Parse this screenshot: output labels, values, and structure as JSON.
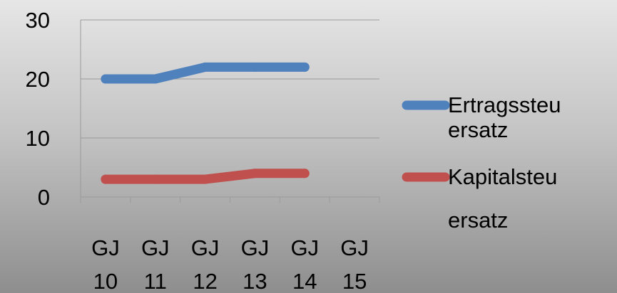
{
  "chart_data": {
    "type": "line",
    "x": [
      "GJ 10",
      "GJ 11",
      "GJ 12",
      "GJ 13",
      "GJ 14",
      "GJ 15"
    ],
    "x_tick_lines": [
      [
        "GJ",
        "10"
      ],
      [
        "GJ",
        "11"
      ],
      [
        "GJ",
        "12"
      ],
      [
        "GJ",
        "13"
      ],
      [
        "GJ",
        "14"
      ],
      [
        "GJ",
        "15"
      ]
    ],
    "y_ticks": [
      "0",
      "10",
      "20",
      "30"
    ],
    "ylim": [
      0,
      30
    ],
    "grid": true,
    "legend_position": "right",
    "series": [
      {
        "name": "Ertragssteuersatz",
        "name_lines": [
          "Ertragssteu",
          "ersatz"
        ],
        "color": "#4f81bd",
        "values": [
          20,
          20,
          22,
          22,
          22,
          null
        ]
      },
      {
        "name": "Kapitalsteuersatz",
        "name_lines": [
          "Kapitalsteu",
          "ersatz"
        ],
        "color": "#c0504d",
        "values": [
          3,
          3,
          3,
          4,
          4,
          null
        ]
      }
    ]
  }
}
